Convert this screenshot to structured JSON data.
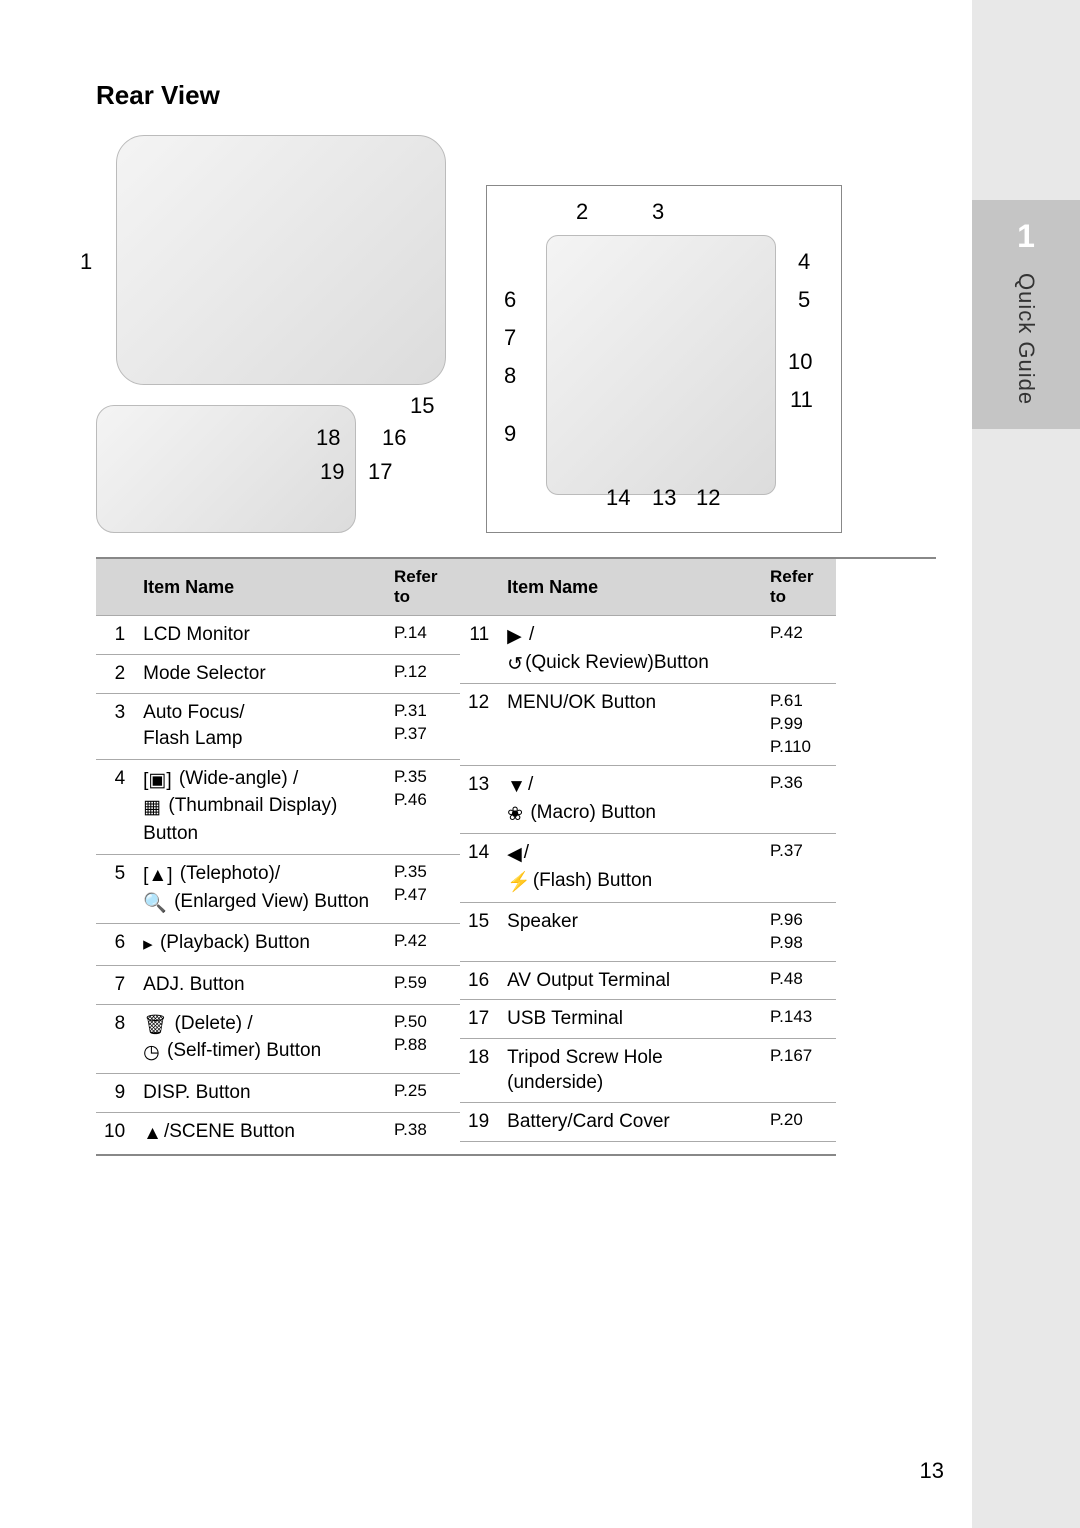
{
  "sidebar": {
    "chapter_number": "1",
    "chapter_title": "Quick Guide"
  },
  "page_number": "13",
  "heading": "Rear View",
  "diagram": {
    "callouts_left": [
      "1"
    ],
    "callouts_bottom": [
      "18",
      "19",
      "15",
      "16",
      "17"
    ],
    "callouts_right_top": [
      "2",
      "3",
      "4",
      "5",
      "6",
      "7",
      "8",
      "9",
      "10",
      "11"
    ],
    "callouts_right_bottom": [
      "14",
      "13",
      "12"
    ]
  },
  "table_headers": {
    "num": "",
    "name": "Item Name",
    "ref": "Refer to"
  },
  "table_left": [
    {
      "num": "1",
      "name": "LCD Monitor",
      "ref": "P.14"
    },
    {
      "num": "2",
      "name": "Mode Selector",
      "ref": "P.12"
    },
    {
      "num": "3",
      "name": "Auto Focus/\nFlash Lamp",
      "ref": "P.31\nP.37"
    },
    {
      "num": "4",
      "icon1": "wide-angle",
      "text1": " (Wide-angle) /",
      "icon2": "thumbnail",
      "text2": " (Thumbnail Display) Button",
      "ref": "P.35\nP.46"
    },
    {
      "num": "5",
      "icon1": "telephoto",
      "text1": " (Telephoto)/",
      "icon2": "magnify",
      "text2": " (Enlarged View) Button",
      "ref": "P.35\nP.47"
    },
    {
      "num": "6",
      "icon1": "playback",
      "text1": " (Playback) Button",
      "ref": "P.42"
    },
    {
      "num": "7",
      "name": "ADJ. Button",
      "ref": "P.59"
    },
    {
      "num": "8",
      "icon1": "delete",
      "text1": " (Delete) /",
      "icon2": "selftimer",
      "text2": " (Self-timer) Button",
      "ref": "P.50\nP.88"
    },
    {
      "num": "9",
      "name": "DISP. Button",
      "ref": "P.25"
    },
    {
      "num": "10",
      "icon1": "up",
      "text1": "/SCENE Button",
      "ref": "P.38"
    }
  ],
  "table_right": [
    {
      "num": "11",
      "icon1": "right",
      "text1": " /",
      "icon2": "quickreview",
      "text2": "(Quick Review)Button",
      "ref": "P.42"
    },
    {
      "num": "12",
      "name": "MENU/OK Button",
      "ref": "P.61\nP.99\nP.110"
    },
    {
      "num": "13",
      "icon1": "down",
      "text1": "/",
      "icon2": "macro",
      "text2": " (Macro) Button",
      "ref": "P.36"
    },
    {
      "num": "14",
      "icon1": "left",
      "text1": "/",
      "icon2": "flash",
      "text2": "(Flash) Button",
      "ref": "P.37"
    },
    {
      "num": "15",
      "name": "Speaker",
      "ref": "P.96\nP.98"
    },
    {
      "num": "16",
      "name": "AV Output Terminal",
      "ref": "P.48"
    },
    {
      "num": "17",
      "name": "USB Terminal",
      "ref": "P.143"
    },
    {
      "num": "18",
      "name": "Tripod Screw Hole (underside)",
      "ref": "P.167"
    },
    {
      "num": "19",
      "name": "Battery/Card Cover",
      "ref": "P.20"
    },
    {
      "num": "",
      "name": "",
      "ref": ""
    }
  ],
  "icons": {
    "wide-angle": "[▣]",
    "thumbnail": "▦",
    "telephoto": "[▲]",
    "magnify": "🔍",
    "playback": "▸",
    "delete": "🗑",
    "selftimer": "◷",
    "up": "▲",
    "right": "▶",
    "quickreview": "↺",
    "down": "▼",
    "macro": "❀",
    "left": "◀",
    "flash": "⚡"
  }
}
